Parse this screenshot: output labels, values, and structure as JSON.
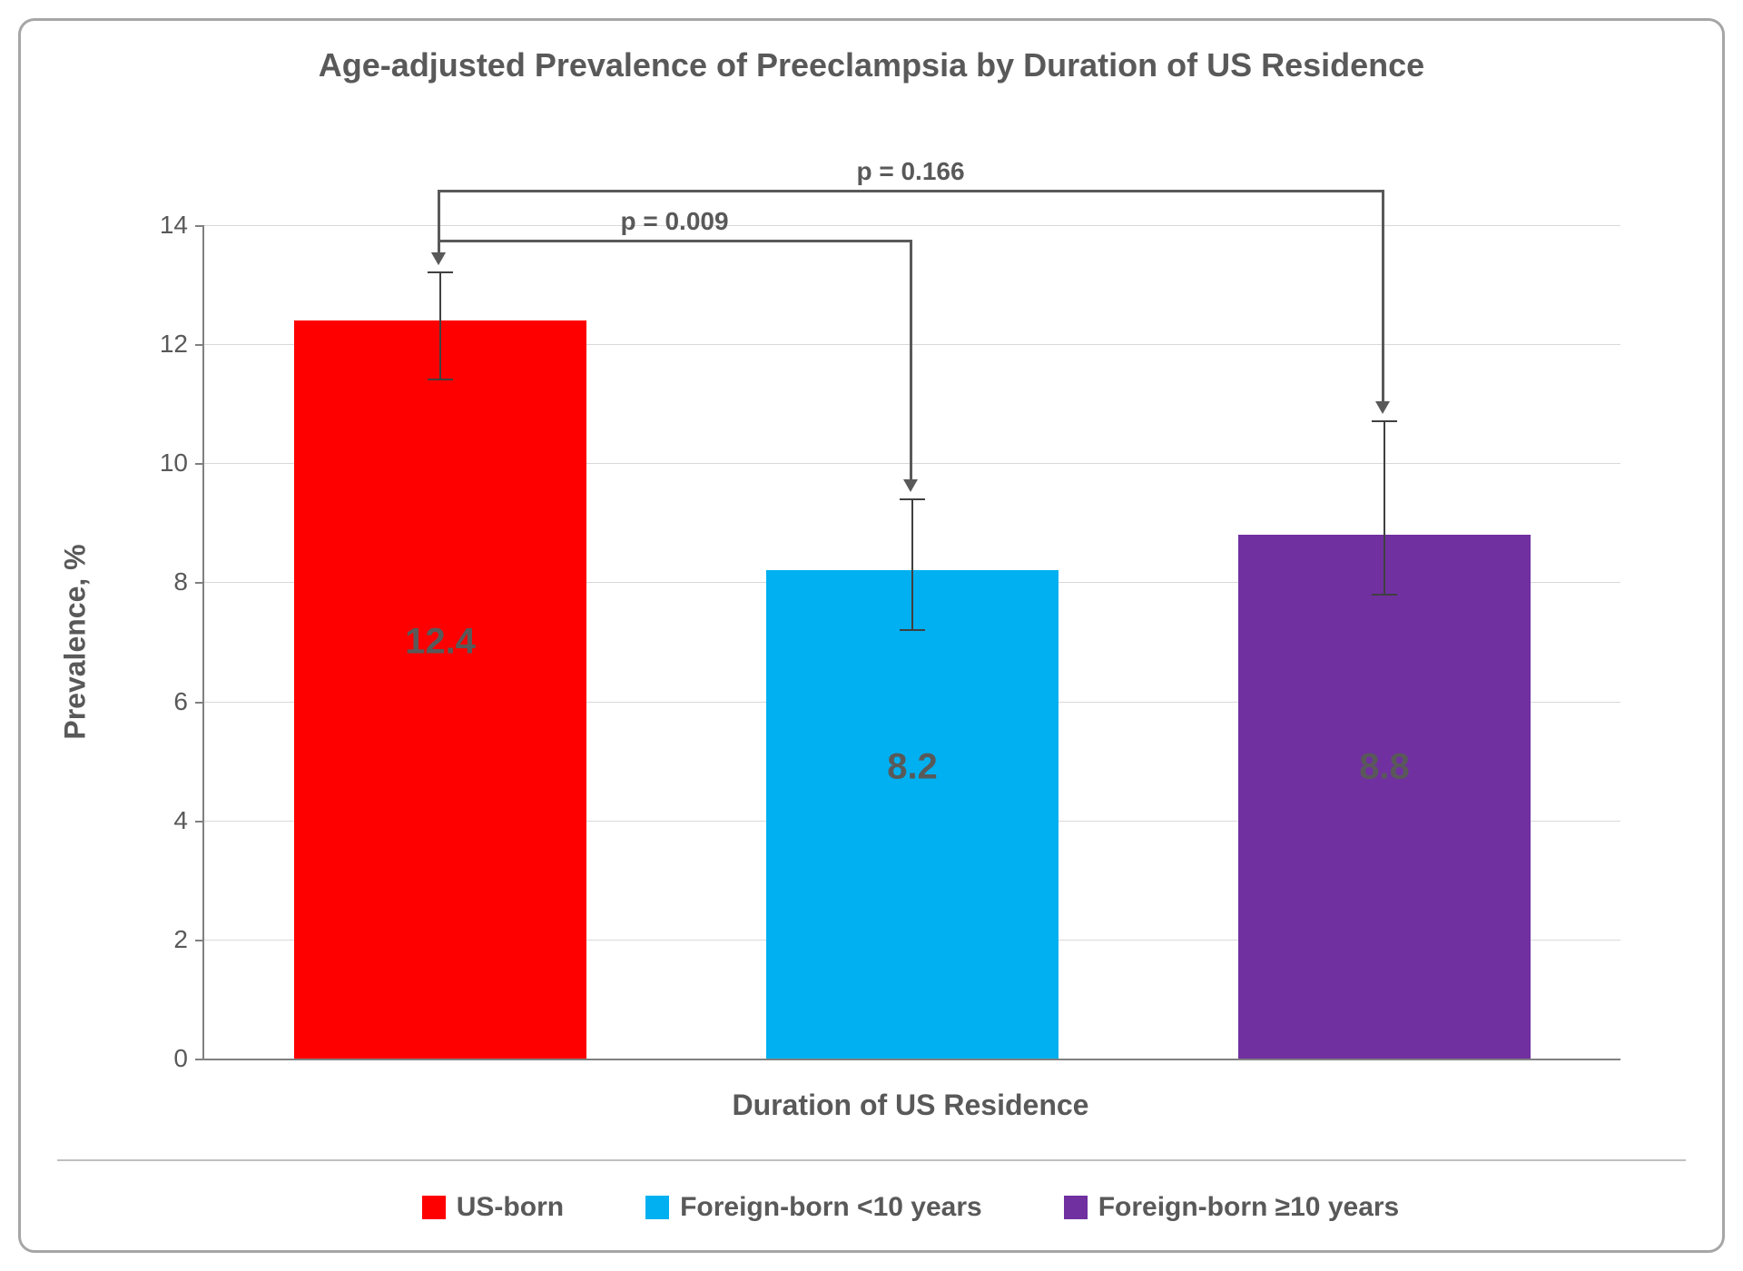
{
  "chart": {
    "type": "bar",
    "title": "Age-adjusted Prevalence of Preeclampsia by Duration of US Residence",
    "title_fontsize": 36,
    "title_color": "#595959",
    "ylabel": "Prevalence, %",
    "xlabel": "Duration of US Residence",
    "label_fontsize": 32,
    "axis_color": "#808080",
    "grid_color": "#d9d9d9",
    "text_color": "#595959",
    "background_color": "#ffffff",
    "border_color": "#a6a6a6",
    "ylim": [
      0,
      14
    ],
    "ytick_step": 2,
    "yticks": [
      0,
      2,
      4,
      6,
      8,
      10,
      12,
      14
    ],
    "tick_fontsize": 28,
    "bar_width": 0.62,
    "bar_label_fontsize": 40,
    "categories": [
      "US-born",
      "Foreign-born <10 years",
      "Foreign-born ≥10 years"
    ],
    "values": [
      12.4,
      8.2,
      8.8
    ],
    "value_labels": [
      "12.4",
      "8.2",
      "8.8"
    ],
    "bar_colors": [
      "#ff0000",
      "#00b0f0",
      "#7030a0"
    ],
    "error_low": [
      11.4,
      7.2,
      7.8
    ],
    "error_high": [
      13.2,
      9.4,
      10.7
    ],
    "error_color": "#404040",
    "brackets": [
      {
        "from": 0,
        "to": 1,
        "label": "p = 0.009",
        "y": 13.75
      },
      {
        "from": 0,
        "to": 2,
        "label": "p = 0.166",
        "y": 14.6
      }
    ],
    "bracket_color": "#595959",
    "bracket_fontsize": 28,
    "legend_fontsize": 30
  }
}
